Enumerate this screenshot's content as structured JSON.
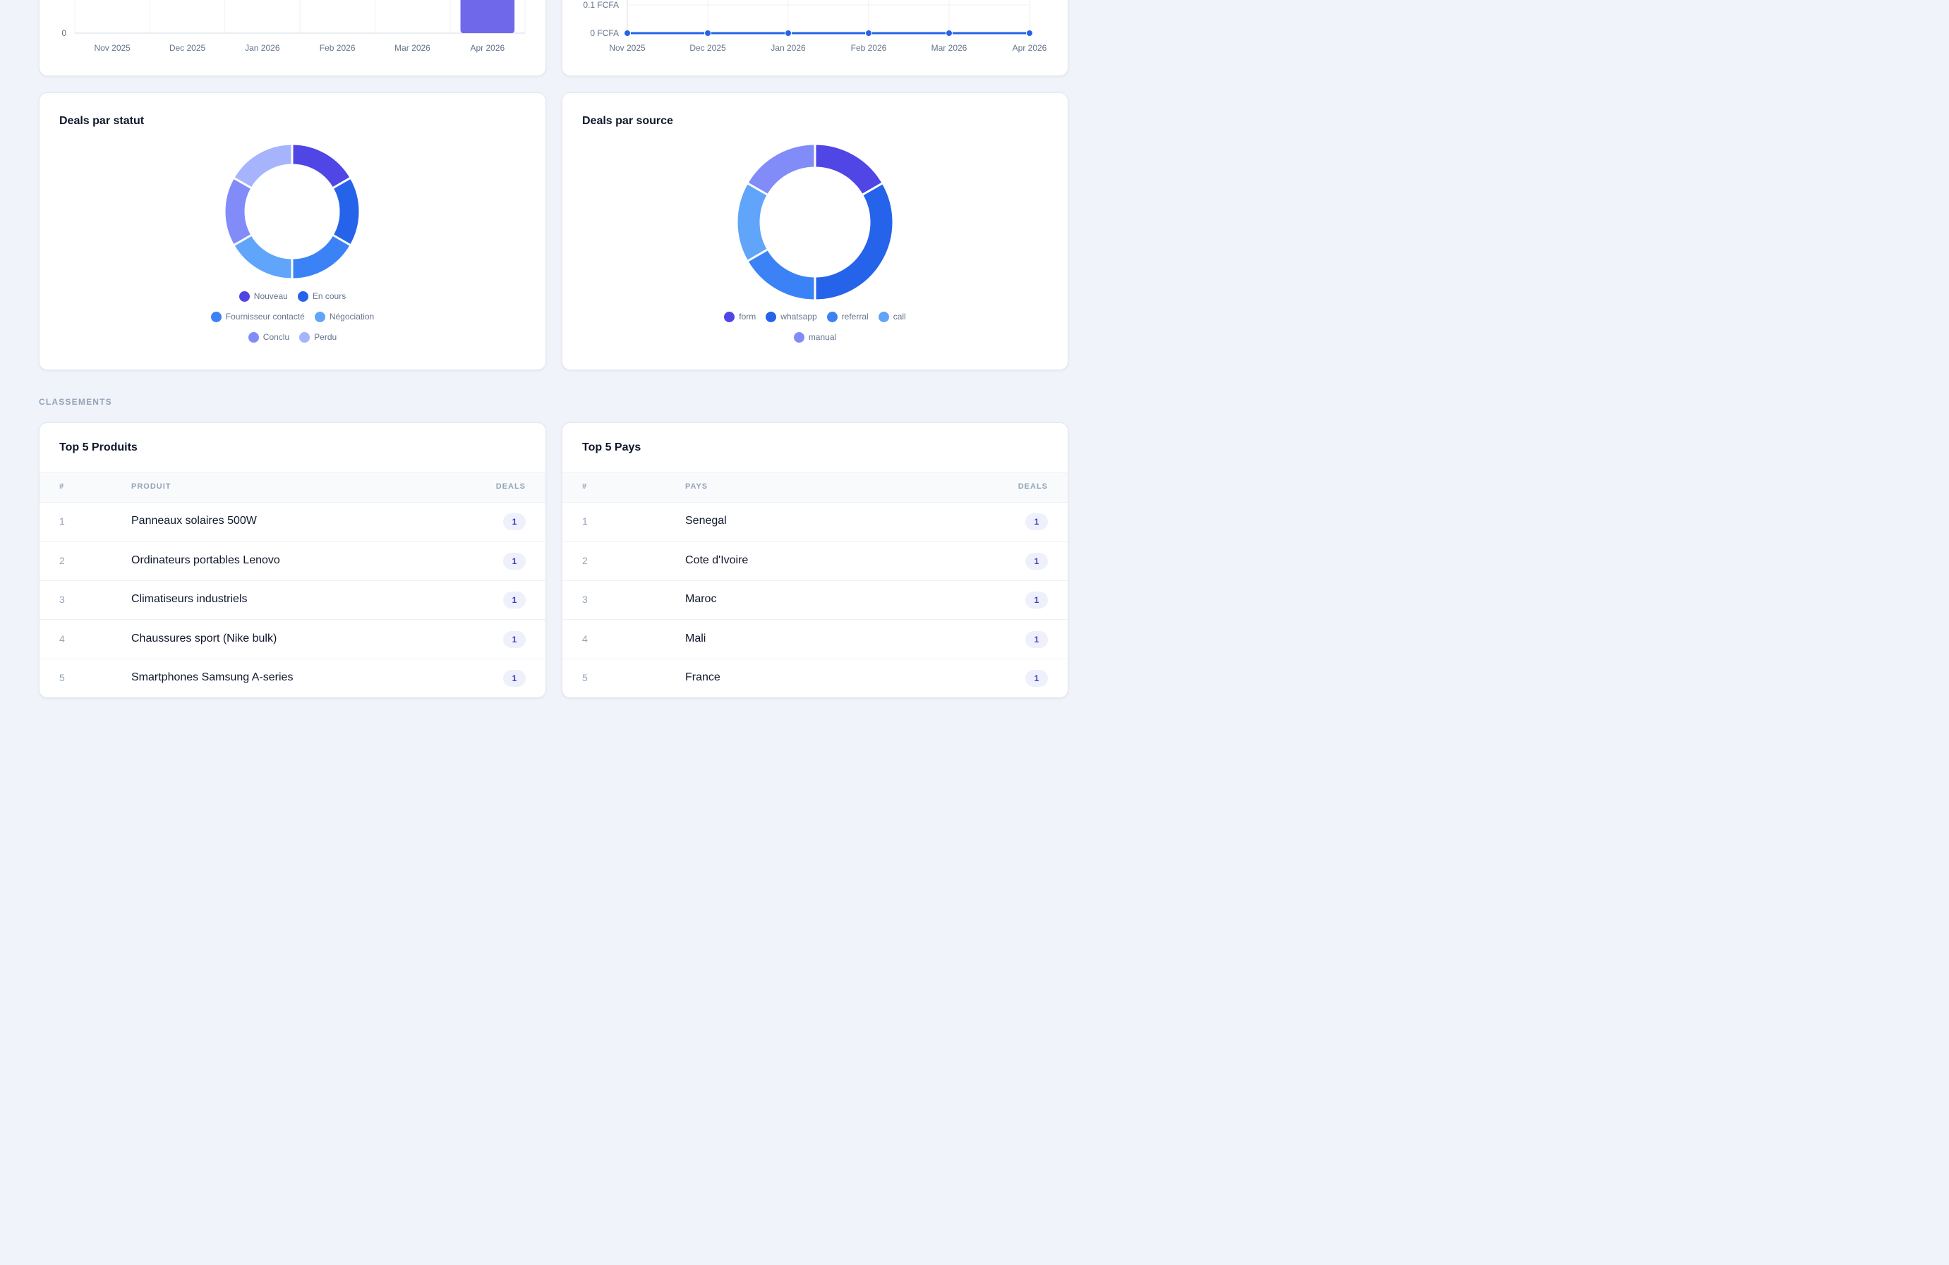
{
  "deals_chart": {
    "type": "bar",
    "categories": [
      "Nov 2025",
      "Dec 2025",
      "Jan 2026",
      "Feb 2026",
      "Mar 2026",
      "Apr 2026"
    ],
    "values": [
      0,
      0,
      0,
      0,
      0,
      6
    ],
    "y_tick_visible": "0",
    "color": "#7068ea"
  },
  "revenue_chart": {
    "type": "line",
    "categories": [
      "Nov 2025",
      "Dec 2025",
      "Jan 2026",
      "Feb 2026",
      "Mar 2026",
      "Apr 2026"
    ],
    "values": [
      0,
      0,
      0,
      0,
      0,
      0
    ],
    "y_ticks": [
      "0 FCFA",
      "0.1 FCFA"
    ],
    "color": "#2563eb"
  },
  "status_chart": {
    "title": "Deals par statut",
    "chart_data": {
      "type": "pie",
      "labels": [
        "Nouveau",
        "En cours",
        "Fournisseur contacté",
        "Négociation",
        "Conclu",
        "Perdu"
      ],
      "values": [
        1,
        1,
        1,
        1,
        1,
        1
      ],
      "colors": [
        "#4f46e5",
        "#2563eb",
        "#3b82f6",
        "#60a5fa",
        "#818cf8",
        "#a5b4fc"
      ]
    }
  },
  "source_chart": {
    "title": "Deals par source",
    "chart_data": {
      "type": "pie",
      "labels": [
        "form",
        "whatsapp",
        "referral",
        "call",
        "manual"
      ],
      "values": [
        1,
        2,
        1,
        1,
        1
      ],
      "colors": [
        "#4f46e5",
        "#2563eb",
        "#3b82f6",
        "#60a5fa",
        "#818cf8"
      ]
    }
  },
  "section_label": "CLASSEMENTS",
  "top_products": {
    "title": "Top 5 Produits",
    "headers": [
      "#",
      "PRODUIT",
      "DEALS"
    ],
    "rows": [
      {
        "rank": "1",
        "name": "Panneaux solaires 500W",
        "deals": "1"
      },
      {
        "rank": "2",
        "name": "Ordinateurs portables Lenovo",
        "deals": "1"
      },
      {
        "rank": "3",
        "name": "Climatiseurs industriels",
        "deals": "1"
      },
      {
        "rank": "4",
        "name": "Chaussures sport (Nike bulk)",
        "deals": "1"
      },
      {
        "rank": "5",
        "name": "Smartphones Samsung A-series",
        "deals": "1"
      }
    ]
  },
  "top_countries": {
    "title": "Top 5 Pays",
    "headers": [
      "#",
      "PAYS",
      "DEALS"
    ],
    "rows": [
      {
        "rank": "1",
        "name": "Senegal",
        "deals": "1"
      },
      {
        "rank": "2",
        "name": "Cote d'Ivoire",
        "deals": "1"
      },
      {
        "rank": "3",
        "name": "Maroc",
        "deals": "1"
      },
      {
        "rank": "4",
        "name": "Mali",
        "deals": "1"
      },
      {
        "rank": "5",
        "name": "France",
        "deals": "1"
      }
    ]
  }
}
